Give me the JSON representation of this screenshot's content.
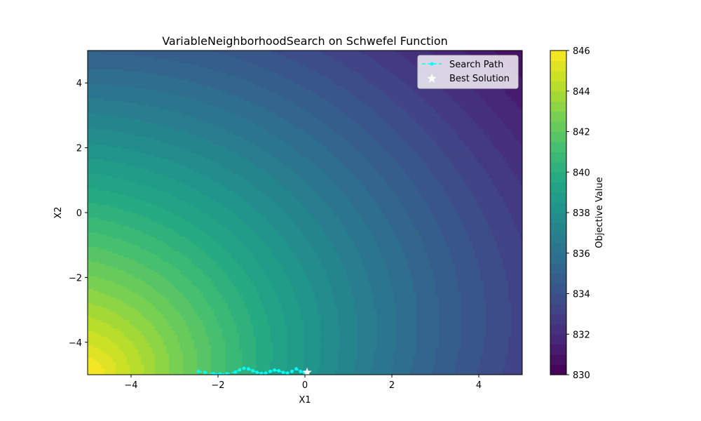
{
  "chart_data": {
    "type": "contour",
    "title": "VariableNeighborhoodSearch on Schwefel Function",
    "xlabel": "X1",
    "ylabel": "X2",
    "xlim": [
      -5,
      5
    ],
    "ylim": [
      -5,
      5
    ],
    "xticks": [
      -4,
      -2,
      0,
      2,
      4
    ],
    "yticks": [
      -4,
      -2,
      0,
      2,
      4
    ],
    "xtick_labels": [
      "−4",
      "−2",
      "0",
      "2",
      "4"
    ],
    "ytick_labels": [
      "−4",
      "−2",
      "0",
      "2",
      "4"
    ],
    "grid": false,
    "colormap": "viridis",
    "colorbar": {
      "label": "Objective Value",
      "range": [
        830,
        846
      ],
      "ticks": [
        830,
        832,
        834,
        836,
        838,
        840,
        842,
        844,
        846
      ],
      "tick_labels": [
        "830",
        "832",
        "834",
        "836",
        "838",
        "840",
        "842",
        "844",
        "846"
      ]
    },
    "contour_levels": [
      830,
      830.5,
      831,
      831.5,
      832,
      832.5,
      833,
      833.5,
      834,
      834.5,
      835,
      835.5,
      836,
      836.5,
      837,
      837.5,
      838,
      838.5,
      839,
      839.5,
      840,
      840.5,
      841,
      841.5,
      842,
      842.5,
      843,
      843.5,
      844,
      844.5,
      845,
      845.5,
      846
    ],
    "surface": {
      "description_free_params": true,
      "value_at_min_corner": 846,
      "value_at_max_corner": 830.5
    },
    "series": [
      {
        "name": "Search Path",
        "style": "dashed-line-markers",
        "color": "#00ffff",
        "x": [
          -2.45,
          -2.3,
          -2.1,
          -1.95,
          -1.8,
          -1.6,
          -1.5,
          -1.4,
          -1.3,
          -1.2,
          -1.1,
          -1.0,
          -0.9,
          -0.8,
          -0.7,
          -0.6,
          -0.5,
          -0.4,
          -0.3,
          -0.2,
          -0.1,
          0.0,
          0.05
        ],
        "y": [
          -4.9,
          -4.93,
          -4.97,
          -4.98,
          -4.97,
          -4.92,
          -4.85,
          -4.8,
          -4.82,
          -4.88,
          -4.93,
          -4.96,
          -4.95,
          -4.9,
          -4.86,
          -4.88,
          -4.93,
          -4.95,
          -4.9,
          -4.82,
          -4.9,
          -4.96,
          -4.93
        ]
      },
      {
        "name": "Best Solution",
        "style": "star",
        "color": "#ffffff",
        "x": [
          0.05
        ],
        "y": [
          -4.93
        ]
      }
    ],
    "legend": {
      "position": "top-right",
      "entries": [
        "Search Path",
        "Best Solution"
      ]
    }
  }
}
